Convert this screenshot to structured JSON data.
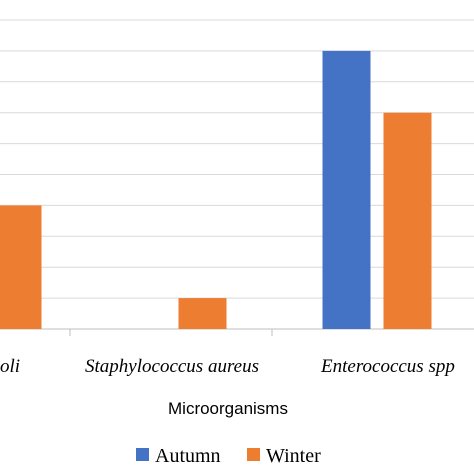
{
  "chart_data": {
    "type": "bar",
    "categories": [
      "E. coli",
      "Staphylococcus aureus",
      "Enterococcus spp."
    ],
    "visible_category_labels": [
      "oli",
      "Staphylococcus aureus",
      "Enterococcus spp"
    ],
    "series": [
      {
        "name": "Autumn",
        "color": "#4472C4",
        "values": [
          null,
          0,
          9
        ]
      },
      {
        "name": "Winter",
        "color": "#ED7D31",
        "values": [
          4,
          1,
          7
        ]
      }
    ],
    "xlabel": "Microorganisms",
    "ylabel": "",
    "ylim": [
      0,
      10
    ],
    "grid": true,
    "legend_placement": "bottom-center"
  }
}
